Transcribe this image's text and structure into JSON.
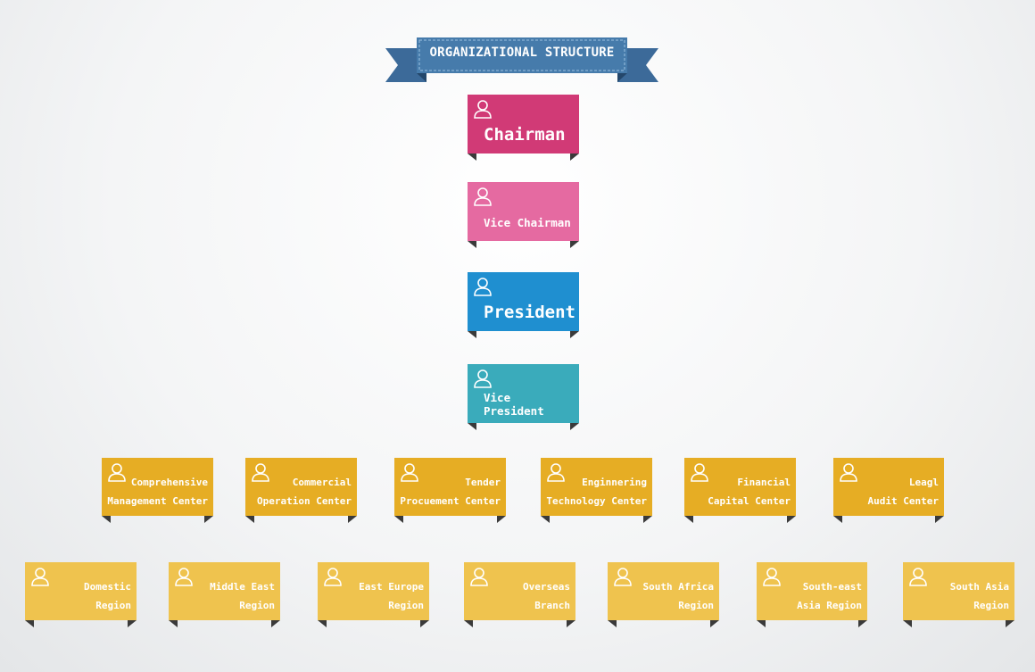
{
  "title": "ORGANIZATIONAL STRUCTURE",
  "colors": {
    "banner": "#3f6f9f",
    "chairman": "#d13a76",
    "vice_chairman": "#e56aa1",
    "president": "#1f8fd0",
    "vice_president": "#3aabbb",
    "centers": "#e6ad24",
    "regions": "#efc34e",
    "person_icon": "#ffffff"
  },
  "executives": [
    {
      "label": "Chairman"
    },
    {
      "label": "Vice Chairman"
    },
    {
      "label": "President"
    },
    {
      "label": "Vice President"
    }
  ],
  "centers": [
    {
      "line1": "Comprehensive",
      "line2": "Management Center"
    },
    {
      "line1": "Commercial",
      "line2": "Operation Center"
    },
    {
      "line1": "Tender",
      "line2": "Procuement Center"
    },
    {
      "line1": "Enginnering",
      "line2": "Technology Center"
    },
    {
      "line1": "Financial",
      "line2": "Capital Center"
    },
    {
      "line1": "Leagl",
      "line2": "Audit Center"
    }
  ],
  "regions": [
    {
      "line1": "Domestic",
      "line2": "Region"
    },
    {
      "line1": "Middle East",
      "line2": "Region"
    },
    {
      "line1": "East Europe",
      "line2": "Region"
    },
    {
      "line1": "Overseas",
      "line2": "Branch"
    },
    {
      "line1": "South Africa",
      "line2": "Region"
    },
    {
      "line1": "South-east",
      "line2": "Asia Region"
    },
    {
      "line1": "South Asia",
      "line2": "Region"
    }
  ]
}
